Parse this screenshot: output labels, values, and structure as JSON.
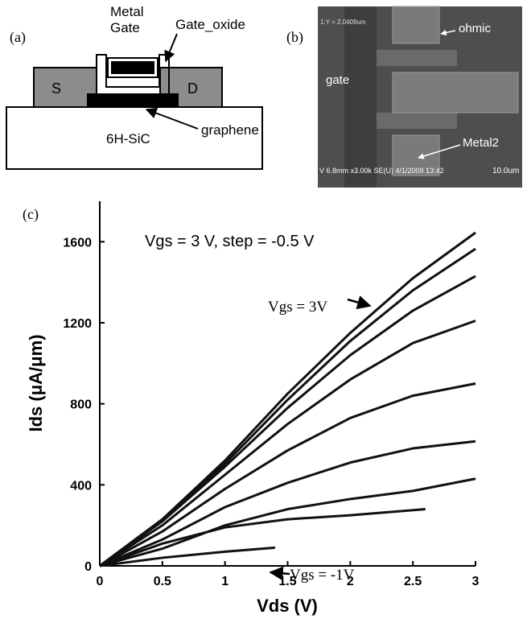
{
  "panel_a": {
    "label": "(a)",
    "metal": "Metal",
    "gate": "Gate",
    "gate_oxide": "Gate_oxide",
    "source": "S",
    "drain": "D",
    "graphene": "graphene",
    "substrate": "6H-SiC"
  },
  "panel_b": {
    "label": "(b)",
    "ohmic": "ohmic",
    "gate": "gate",
    "metal2": "Metal2",
    "measure": "1:Y = 2.0409um",
    "info": "V 6.8mm x3.00k SE(U) 4/1/2009 13:42",
    "scale": "10.0um"
  },
  "chart_data": {
    "type": "line",
    "panel_label": "(c)",
    "x_label": "Vds (V)",
    "y_label": "Ids (μA/μm)",
    "annotations": [
      "Vgs = 3 V, step = -0.5 V",
      "Vgs = 3V",
      "Vgs = -1V"
    ],
    "xlim": [
      0,
      3
    ],
    "ylim": [
      0,
      1800
    ],
    "xticks": [
      0,
      0.5,
      1,
      1.5,
      2,
      2.5,
      3
    ],
    "yticks": [
      0,
      400,
      800,
      1200,
      1600
    ],
    "color": "#111111",
    "series": [
      {
        "x": [
          0,
          0.5,
          1,
          1.5,
          2,
          2.5,
          3
        ],
        "values": [
          0,
          230,
          520,
          850,
          1150,
          1420,
          1645
        ]
      },
      {
        "x": [
          0,
          0.5,
          1,
          1.5,
          2,
          2.5,
          3
        ],
        "values": [
          0,
          225,
          505,
          820,
          1110,
          1360,
          1565
        ]
      },
      {
        "x": [
          0,
          0.5,
          1,
          1.5,
          2,
          2.5,
          3
        ],
        "values": [
          0,
          220,
          490,
          780,
          1040,
          1260,
          1430
        ]
      },
      {
        "x": [
          0,
          0.5,
          1,
          1.5,
          2,
          2.5,
          3
        ],
        "values": [
          0,
          200,
          450,
          700,
          920,
          1100,
          1210
        ]
      },
      {
        "x": [
          0,
          0.5,
          1,
          1.5,
          2,
          2.5,
          3
        ],
        "values": [
          0,
          170,
          380,
          570,
          730,
          840,
          900
        ]
      },
      {
        "x": [
          0,
          0.5,
          1,
          1.5,
          2,
          2.5,
          3
        ],
        "values": [
          0,
          130,
          290,
          410,
          510,
          580,
          615
        ]
      },
      {
        "x": [
          0,
          0.5,
          1,
          1.5,
          2,
          2.5,
          3
        ],
        "values": [
          0,
          85,
          200,
          280,
          330,
          370,
          430
        ]
      },
      {
        "x": [
          0,
          0.5,
          1,
          1.5,
          2,
          2.6
        ],
        "values": [
          0,
          110,
          190,
          230,
          250,
          280
        ]
      },
      {
        "x": [
          0,
          0.5,
          1,
          1.4
        ],
        "values": [
          0,
          40,
          70,
          90
        ]
      }
    ]
  }
}
